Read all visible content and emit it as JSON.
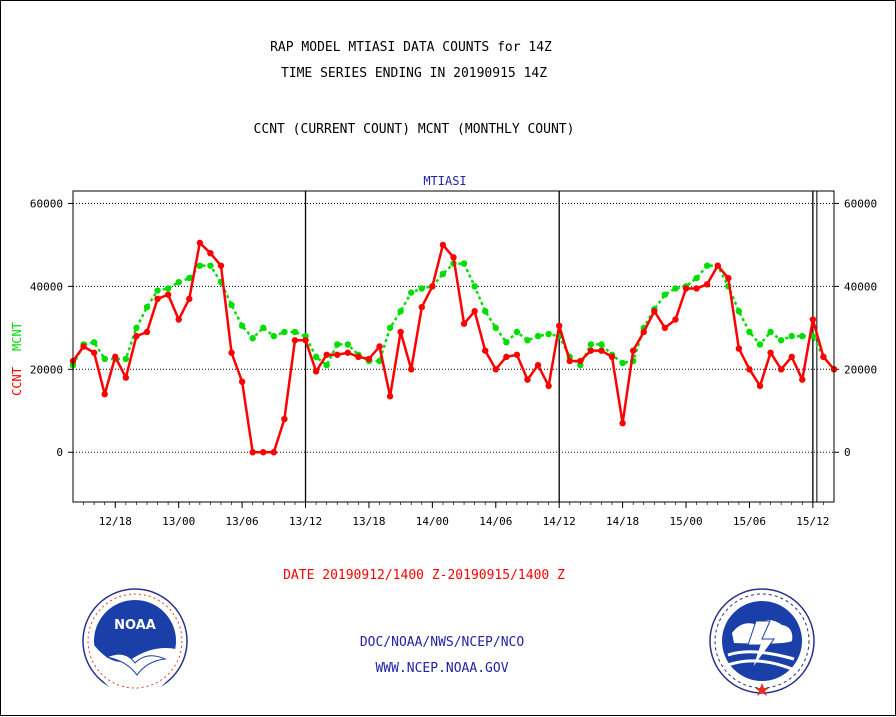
{
  "header": {
    "title_line1": "RAP MODEL MTIASI DATA COUNTS for 14Z",
    "title_line2": "TIME SERIES ENDING IN 20190915 14Z",
    "legend_line": "CCNT (CURRENT COUNT) MCNT (MONTHLY COUNT)"
  },
  "colors": {
    "ccnt": "#ff0000",
    "mcnt": "#00dd00",
    "platform": "#2222aa",
    "date_label": "#ff0000"
  },
  "chart_data": {
    "type": "line",
    "platform_label": "MTIASI",
    "ylabel_ccnt": "CCNT",
    "ylabel_mcnt": "MCNT",
    "ylim": [
      -12000,
      63000
    ],
    "y_ticks": [
      "60000",
      "40000",
      "20000",
      "0"
    ],
    "y_tick_values": [
      60000,
      40000,
      20000,
      0
    ],
    "x_tick_labels": [
      "12/18",
      "13/00",
      "13/06",
      "13/12",
      "13/18",
      "14/00",
      "14/06",
      "14/12",
      "14/18",
      "15/00",
      "15/06",
      "15/12"
    ],
    "x_tick_hours": [
      4,
      10,
      16,
      22,
      28,
      34,
      40,
      46,
      52,
      58,
      64,
      70
    ],
    "day_boundaries_hours": [
      22,
      46,
      70
    ],
    "x_range_hours": [
      0,
      72
    ],
    "grid": true,
    "series": [
      {
        "name": "CCNT",
        "values": [
          22000,
          25500,
          24000,
          14000,
          23000,
          18000,
          28000,
          29000,
          37000,
          38000,
          32000,
          37000,
          50500,
          48000,
          45000,
          24000,
          17000,
          0,
          0,
          0,
          8000,
          27000,
          27000,
          19500,
          23500,
          23500,
          24000,
          23000,
          22500,
          25500,
          13500,
          29000,
          20000,
          35000,
          40000,
          50000,
          47000,
          31000,
          34000,
          24500,
          20000,
          23000,
          23500,
          17500,
          21000,
          16000,
          30500,
          22000,
          22000,
          24500,
          24500,
          23000,
          7000,
          24500,
          29000,
          34000,
          30000,
          32000,
          39500,
          39500,
          40500,
          45000,
          42000,
          25000,
          20000,
          16000,
          24000,
          20000,
          23000,
          17500,
          32000,
          23000,
          20000
        ]
      },
      {
        "name": "MCNT",
        "values": [
          21000,
          26000,
          26500,
          22500,
          22500,
          22500,
          30000,
          35000,
          39000,
          39500,
          41000,
          42000,
          45000,
          45000,
          41000,
          35500,
          30500,
          27500,
          30000,
          28000,
          29000,
          29000,
          28000,
          23000,
          21000,
          26000,
          26000,
          23500,
          22000,
          22000,
          30000,
          34000,
          38500,
          39500,
          40000,
          43000,
          45500,
          45500,
          40000,
          34000,
          30000,
          26500,
          29000,
          27000,
          28000,
          28500,
          28000,
          23000,
          21000,
          26000,
          26000,
          23500,
          21500,
          22000,
          30000,
          34500,
          38000,
          39500,
          40000,
          42000,
          45000,
          45000,
          40000,
          34000,
          29000,
          26000,
          29000,
          27000,
          28000,
          28000,
          28000,
          23000,
          20000
        ]
      }
    ]
  },
  "footer": {
    "date_range": "DATE 20190912/1400 Z-20190915/1400 Z",
    "org_line": "DOC/NOAA/NWS/NCEP/NCO",
    "url_line": "WWW.NCEP.NOAA.GOV",
    "noaa_logo": "noaa-logo",
    "nws_logo": "nws-logo"
  }
}
